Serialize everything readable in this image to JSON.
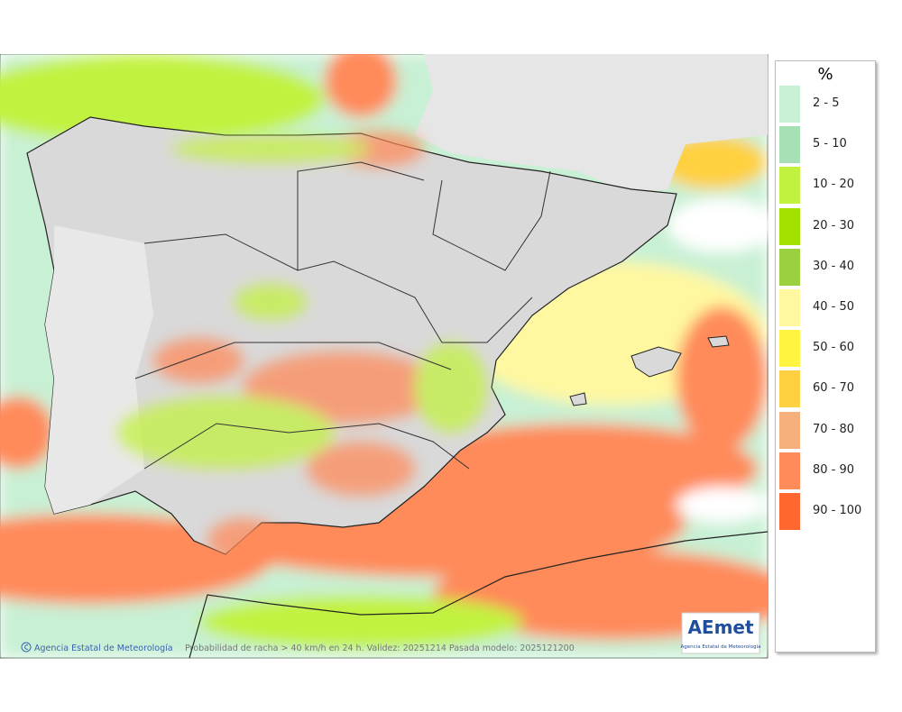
{
  "legend": {
    "title": "%",
    "entries": [
      {
        "label": "2 - 5",
        "color": "#c8f0d4"
      },
      {
        "label": "5 - 10",
        "color": "#a6e0b4"
      },
      {
        "label": "10 - 20",
        "color": "#c2f240"
      },
      {
        "label": "20 - 30",
        "color": "#a2e000"
      },
      {
        "label": "30 - 40",
        "color": "#9ad040"
      },
      {
        "label": "40 - 50",
        "color": "#fff8a0"
      },
      {
        "label": "50 - 60",
        "color": "#fff440"
      },
      {
        "label": "60 - 70",
        "color": "#ffd040"
      },
      {
        "label": "70 - 80",
        "color": "#f6b07c"
      },
      {
        "label": "80 - 90",
        "color": "#ff8a5a"
      },
      {
        "label": "90 - 100",
        "color": "#ff6630"
      }
    ]
  },
  "footer": {
    "credit": "Agencia Estatal de Meteorología",
    "caption": "Probabilidad de racha > 40 km/h en 24 h. Validez: 20251214 Pasada modelo: 2025121200"
  },
  "logo": {
    "name": "AEmet",
    "subtitle": "Agencia Estatal de Meteorología"
  }
}
